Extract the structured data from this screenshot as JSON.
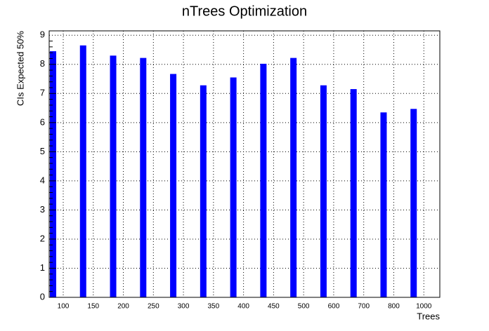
{
  "chart_data": {
    "type": "bar",
    "title": "nTrees Optimization",
    "x_label": "Trees",
    "y_label": "CIs Expected 50%",
    "categories": [
      "100",
      "150",
      "200",
      "250",
      "300",
      "350",
      "400",
      "450",
      "500",
      "600",
      "700",
      "800",
      "1000"
    ],
    "values": [
      8.45,
      8.65,
      8.3,
      8.22,
      7.67,
      7.28,
      7.55,
      8.02,
      8.22,
      7.28,
      7.15,
      6.35,
      6.47
    ],
    "color": "#0000ff",
    "ylim": [
      0,
      9.15
    ],
    "yticks": [
      0,
      1,
      2,
      3,
      4,
      5,
      6,
      7,
      8,
      9
    ],
    "grid": true
  }
}
